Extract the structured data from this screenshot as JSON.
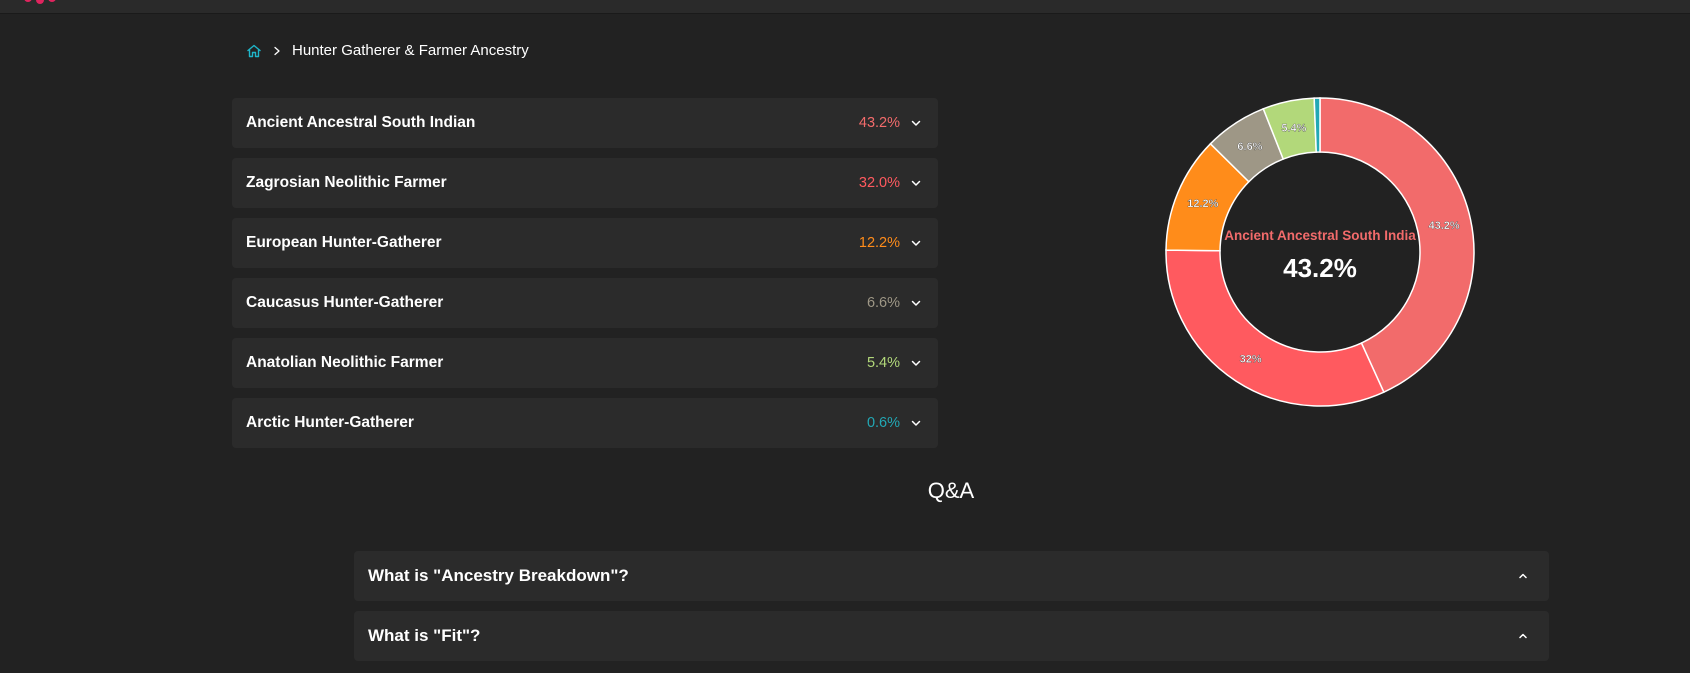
{
  "breadcrumb": {
    "home_icon": "home-icon",
    "separator_icon": "chevron-right-icon",
    "current": "Hunter Gatherer & Farmer Ancestry"
  },
  "ancestry": {
    "items": [
      {
        "label": "Ancient Ancestral South Indian",
        "value": "43.2%",
        "color": "#f26b6b"
      },
      {
        "label": "Zagrosian Neolithic Farmer",
        "value": "32.0%",
        "color": "#ff5a5f"
      },
      {
        "label": "European Hunter-Gatherer",
        "value": "12.2%",
        "color": "#ff8c1a"
      },
      {
        "label": "Caucasus Hunter-Gatherer",
        "value": "6.6%",
        "color": "#9e9786"
      },
      {
        "label": "Anatolian Neolithic Farmer",
        "value": "5.4%",
        "color": "#b2d87a"
      },
      {
        "label": "Arctic Hunter-Gatherer",
        "value": "0.6%",
        "color": "#22a8b5"
      }
    ],
    "expand_icon": "chevron-down-icon"
  },
  "chart_data": {
    "type": "pie",
    "categories": [
      "Ancient Ancestral South Indian",
      "Zagrosian Neolithic Farmer",
      "European Hunter-Gatherer",
      "Caucasus Hunter-Gatherer",
      "Anatolian Neolithic Farmer",
      "Arctic Hunter-Gatherer"
    ],
    "values": [
      43.2,
      32.0,
      12.2,
      6.6,
      5.4,
      0.6
    ],
    "slice_labels": [
      "43.2%",
      "32%",
      "12.2%",
      "6.6%",
      "5.4%",
      ""
    ],
    "colors": [
      "#f26b6b",
      "#ff5a5f",
      "#ff8c1a",
      "#9e9786",
      "#b2d87a",
      "#22a8b5"
    ],
    "center_title": "Ancient Ancestral South India",
    "center_value": "43.2%",
    "donut": true
  },
  "qa": {
    "title": "Q&A",
    "items": [
      {
        "question": "What is \"Ancestry Breakdown\"?"
      },
      {
        "question": "What is \"Fit\"?"
      }
    ],
    "collapse_icon": "chevron-up-icon"
  }
}
